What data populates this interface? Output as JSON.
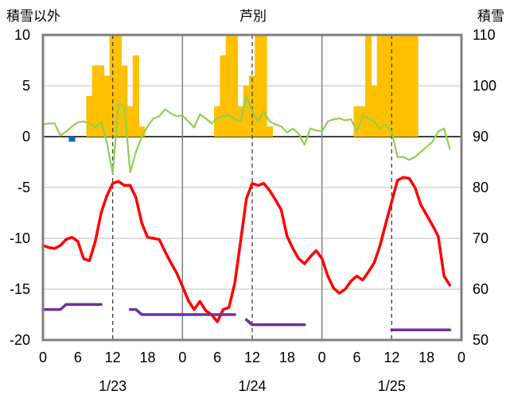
{
  "chart_data": {
    "type": "bar+line",
    "title": "芦別",
    "left_axis_label": "積雪以外",
    "right_axis_label": "積雪",
    "left_ylim": [
      -20,
      10
    ],
    "left_ticks": [
      "10",
      "5",
      "0",
      "-5",
      "-10",
      "-15",
      "-20"
    ],
    "right_ylim": [
      50,
      110
    ],
    "right_ticks": [
      "110",
      "100",
      "90",
      "80",
      "70",
      "60",
      "50"
    ],
    "x_range_hours": [
      0,
      72
    ],
    "x_ticks": [
      "0",
      "6",
      "12",
      "18",
      "0",
      "6",
      "12",
      "18",
      "0",
      "6",
      "12",
      "18",
      "0"
    ],
    "date_labels": [
      {
        "text": "1/23",
        "hour": 12
      },
      {
        "text": "1/24",
        "hour": 36
      },
      {
        "text": "1/25",
        "hour": 60
      }
    ],
    "day_separators_hours": [
      24,
      48
    ],
    "dashed_lines_hours": [
      12,
      36,
      60
    ],
    "colors": {
      "precip_bars": "#ffc000",
      "temperature": "#ff0000",
      "wind": "#92d050",
      "snow_depth": "#7030a0",
      "small_bar": "#0070c0"
    },
    "series": [
      {
        "kind": "bar",
        "axis": "left",
        "color": "#ffc000",
        "x": [
          8,
          9,
          10,
          11,
          12,
          13,
          14,
          15,
          16,
          17,
          30,
          31,
          32,
          33,
          34,
          35,
          36,
          37,
          38,
          39,
          54,
          55,
          56,
          57,
          58,
          59,
          60,
          61,
          62,
          63,
          64
        ],
        "values": [
          4,
          7,
          7,
          6,
          10,
          10,
          7,
          3,
          8,
          1,
          3,
          8,
          10,
          10,
          3,
          5,
          6,
          10,
          10,
          1,
          3,
          3,
          10,
          5,
          10,
          10,
          10,
          10,
          10,
          10,
          10
        ]
      },
      {
        "kind": "bar",
        "axis": "left",
        "color": "#0070c0",
        "x": [
          5
        ],
        "values": [
          -0.5
        ]
      },
      {
        "kind": "line",
        "axis": "left",
        "color": "#92d050",
        "x": [
          0,
          1,
          2,
          3,
          4,
          5,
          6,
          7,
          8,
          9,
          10,
          11,
          12,
          13,
          14,
          15,
          16,
          17,
          18,
          19,
          20,
          21,
          22,
          23,
          24,
          25,
          26,
          27,
          28,
          29,
          30,
          31,
          32,
          33,
          34,
          35,
          36,
          37,
          38,
          39,
          40,
          41,
          42,
          43,
          44,
          45,
          46,
          47,
          48,
          49,
          50,
          51,
          52,
          53,
          54,
          55,
          56,
          57,
          58,
          59,
          60,
          61,
          62,
          63,
          64,
          65,
          66,
          67,
          68,
          69,
          70
        ],
        "values": [
          1.2,
          1.3,
          1.3,
          0.1,
          0.5,
          1.0,
          1.4,
          1.5,
          1.3,
          0.9,
          1.5,
          -0.6,
          -3.6,
          3.2,
          3.0,
          -3.5,
          -1.5,
          0.0,
          1.0,
          1.8,
          2.0,
          2.7,
          2.3,
          2.0,
          2.1,
          1.5,
          0.9,
          2.2,
          1.8,
          1.3,
          1.8,
          2.0,
          2.1,
          1.7,
          1.5,
          4.0,
          2.5,
          1.5,
          2.5,
          1.5,
          1.2,
          1.0,
          0.4,
          0.8,
          0.3,
          -0.8,
          0.8,
          0.6,
          0.5,
          1.5,
          1.7,
          1.8,
          1.6,
          1.7,
          0.5,
          2.0,
          1.8,
          1.5,
          0.8,
          1.2,
          0.5,
          -2.0,
          -2.0,
          -2.3,
          -2.0,
          -1.5,
          -1.0,
          -0.5,
          0.5,
          0.8,
          -1.2
        ]
      },
      {
        "kind": "line",
        "axis": "left",
        "color": "#ff0000",
        "x": [
          0,
          1,
          2,
          3,
          4,
          5,
          6,
          7,
          8,
          9,
          10,
          11,
          12,
          13,
          14,
          15,
          16,
          17,
          18,
          19,
          20,
          21,
          22,
          23,
          24,
          25,
          26,
          27,
          28,
          29,
          30,
          31,
          32,
          33,
          34,
          35,
          36,
          37,
          38,
          39,
          40,
          41,
          42,
          43,
          44,
          45,
          46,
          47,
          48,
          49,
          50,
          51,
          52,
          53,
          54,
          55,
          56,
          57,
          58,
          59,
          60,
          61,
          62,
          63,
          64,
          65,
          66,
          67,
          68,
          69,
          70
        ],
        "values": [
          -10.7,
          -10.9,
          -11.0,
          -10.7,
          -10.1,
          -9.9,
          -10.3,
          -12.0,
          -12.2,
          -10.3,
          -7.5,
          -5.8,
          -4.6,
          -4.4,
          -4.8,
          -4.8,
          -6.0,
          -8.5,
          -9.9,
          -10.0,
          -10.1,
          -11.3,
          -12.4,
          -13.4,
          -14.7,
          -16.1,
          -17.0,
          -16.2,
          -17.1,
          -17.5,
          -18.2,
          -17.0,
          -16.8,
          -14.4,
          -10.3,
          -6.1,
          -4.6,
          -4.8,
          -4.6,
          -5.3,
          -6.2,
          -7.2,
          -9.8,
          -11.0,
          -12.0,
          -12.5,
          -11.8,
          -11.2,
          -12.0,
          -13.7,
          -14.9,
          -15.4,
          -15.0,
          -14.2,
          -13.7,
          -14.1,
          -13.3,
          -12.4,
          -10.7,
          -8.5,
          -6.4,
          -4.3,
          -4.0,
          -4.1,
          -5.0,
          -6.7,
          -7.7,
          -8.7,
          -9.8,
          -13.7,
          -14.6
        ]
      },
      {
        "kind": "line",
        "axis": "right",
        "color": "#7030a0",
        "segments": [
          {
            "x": [
              0,
              3,
              4,
              10
            ],
            "values": [
              56.0,
              56.0,
              57.0,
              57.0
            ]
          },
          {
            "x": [
              15,
              16,
              17,
              33
            ],
            "values": [
              56.0,
              56.0,
              55.0,
              55.0
            ]
          },
          {
            "x": [
              35,
              36,
              45
            ],
            "values": [
              54.0,
              53.0,
              53.0
            ]
          },
          {
            "x": [
              60,
              70
            ],
            "values": [
              52.0,
              52.0
            ]
          }
        ]
      }
    ]
  }
}
